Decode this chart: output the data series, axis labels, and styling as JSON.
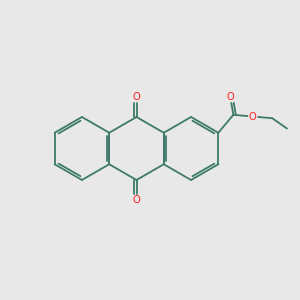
{
  "background_color": "#e8e8e8",
  "bond_color": "#3d7a6a",
  "oxygen_color": "#ff1a1a",
  "figsize": [
    3.0,
    3.0
  ],
  "dpi": 100,
  "lw": 1.3,
  "dbl_off": 0.085,
  "xlim": [
    0,
    10
  ],
  "ylim": [
    0,
    10
  ]
}
